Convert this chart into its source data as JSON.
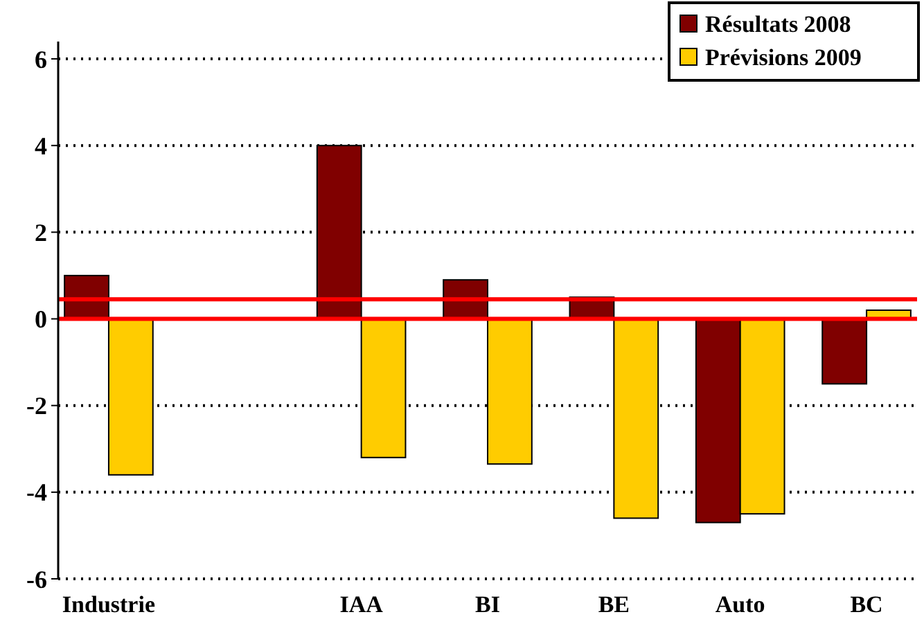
{
  "chart_data": {
    "type": "bar",
    "categories": [
      "Industrie",
      null,
      "IAA",
      "BI",
      "BE",
      "Auto",
      "BC"
    ],
    "series": [
      {
        "name": "Résultats 2008",
        "color": "#800000",
        "values": [
          1.0,
          null,
          4.0,
          0.9,
          0.5,
          -4.7,
          -1.5
        ]
      },
      {
        "name": "Prévisions 2009",
        "color": "#ffcc00",
        "values": [
          -3.6,
          null,
          -3.2,
          -3.35,
          -4.6,
          -4.5,
          0.2
        ]
      }
    ],
    "ylim": [
      -6,
      6.4
    ],
    "yticks": [
      {
        "value": -6,
        "label": "-6"
      },
      {
        "value": -4,
        "label": "-4"
      },
      {
        "value": -2,
        "label": "-2"
      },
      0,
      2,
      4,
      6
    ],
    "grid": "y",
    "legend": "top right",
    "ref_lines": [
      {
        "axis": "y",
        "value": 0,
        "color": "#ff0000"
      },
      {
        "axis": "y",
        "value": 0.45,
        "color": "#ff0000"
      }
    ]
  }
}
